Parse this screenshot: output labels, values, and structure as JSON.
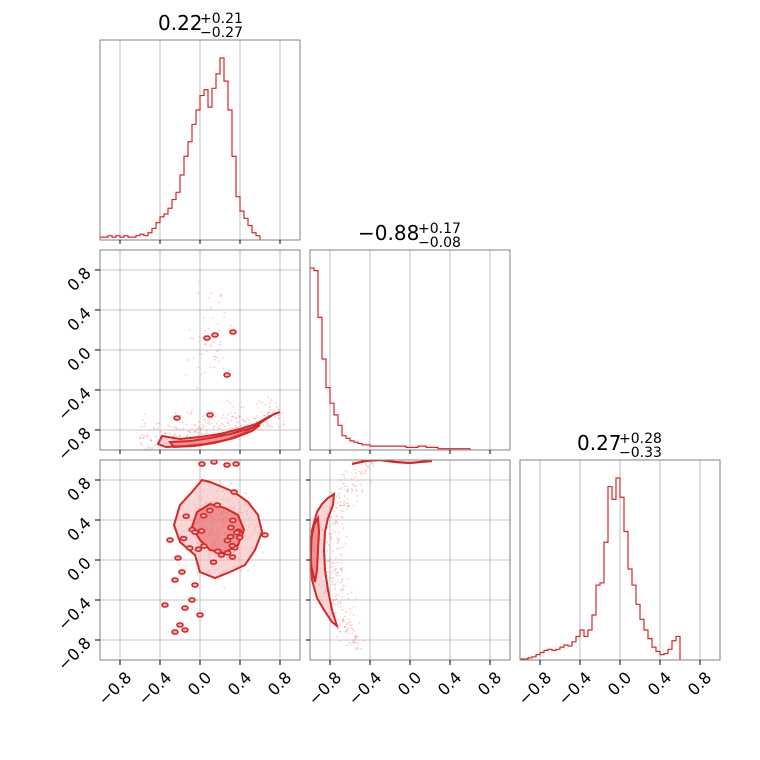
{
  "chart_data": {
    "type": "corner",
    "color": "#d62728",
    "fill_color": "#f4b4b4",
    "grid": true,
    "axis_range": [
      -1,
      1
    ],
    "tick_values": [
      -0.8,
      -0.4,
      0.0,
      0.4,
      0.8
    ],
    "tick_labels": [
      "−0.8",
      "−0.4",
      "0.0",
      "0.4",
      "0.8"
    ],
    "titles": [
      {
        "value": "0.22",
        "upper": "+0.21",
        "lower": "−0.27"
      },
      {
        "value": "−0.88",
        "upper": "+0.17",
        "lower": "−0.08"
      },
      {
        "value": "0.27",
        "upper": "+0.28",
        "lower": "−0.33"
      }
    ],
    "histograms": [
      {
        "edges_start": -1.0,
        "bin_width": 0.04,
        "counts": [
          2,
          2,
          3,
          2,
          3,
          2,
          3,
          2,
          2,
          3,
          4,
          3,
          5,
          8,
          12,
          16,
          18,
          22,
          28,
          33,
          45,
          58,
          68,
          80,
          90,
          100,
          104,
          92,
          105,
          115,
          126,
          110,
          90,
          58,
          30,
          20,
          15,
          10,
          5,
          3
        ]
      },
      {
        "edges_start": -1.0,
        "bin_width": 0.04,
        "counts": [
          140,
          138,
          102,
          70,
          48,
          36,
          27,
          19,
          11,
          9,
          7,
          6,
          5,
          4,
          4,
          3,
          3,
          3,
          3,
          3,
          3,
          3,
          3,
          3,
          2,
          2,
          2,
          3,
          3,
          2,
          2,
          2,
          1,
          1,
          1,
          1,
          1,
          1,
          1,
          1
        ]
      },
      {
        "edges_start": -1.0,
        "bin_width": 0.04,
        "counts": [
          1,
          1,
          2,
          3,
          5,
          7,
          9,
          10,
          9,
          10,
          12,
          14,
          13,
          17,
          22,
          28,
          22,
          28,
          42,
          70,
          72,
          110,
          162,
          150,
          170,
          152,
          120,
          85,
          70,
          52,
          38,
          28,
          20,
          12,
          8,
          5,
          6,
          10,
          18,
          22
        ]
      }
    ],
    "contours": {
      "p1_vs_p2": {
        "outer": [
          [
            -0.38,
            -0.86
          ],
          [
            -0.2,
            -0.89
          ],
          [
            0.0,
            -0.87
          ],
          [
            0.2,
            -0.84
          ],
          [
            0.4,
            -0.79
          ],
          [
            0.56,
            -0.74
          ],
          [
            0.7,
            -0.66
          ],
          [
            0.8,
            -0.62
          ],
          [
            0.74,
            -0.64
          ],
          [
            0.6,
            -0.73
          ],
          [
            0.44,
            -0.83
          ],
          [
            0.26,
            -0.9
          ],
          [
            0.05,
            -0.94
          ],
          [
            -0.15,
            -0.96
          ],
          [
            -0.34,
            -0.97
          ],
          [
            -0.42,
            -0.94
          ]
        ],
        "inner": [
          [
            -0.3,
            -0.92
          ],
          [
            -0.1,
            -0.91
          ],
          [
            0.1,
            -0.88
          ],
          [
            0.3,
            -0.84
          ],
          [
            0.48,
            -0.79
          ],
          [
            0.6,
            -0.75
          ],
          [
            0.52,
            -0.81
          ],
          [
            0.34,
            -0.88
          ],
          [
            0.14,
            -0.93
          ],
          [
            -0.06,
            -0.96
          ],
          [
            -0.26,
            -0.97
          ]
        ],
        "specks": [
          [
            0.07,
            0.12
          ],
          [
            0.15,
            0.15
          ],
          [
            0.33,
            0.18
          ],
          [
            0.27,
            -0.25
          ],
          [
            -0.23,
            -0.68
          ],
          [
            0.1,
            -0.65
          ]
        ]
      },
      "p1_vs_p3": {
        "outer": [
          [
            -0.05,
            0.05
          ],
          [
            -0.2,
            0.18
          ],
          [
            -0.26,
            0.35
          ],
          [
            -0.2,
            0.55
          ],
          [
            -0.08,
            0.68
          ],
          [
            0.02,
            0.8
          ],
          [
            0.1,
            0.78
          ],
          [
            0.2,
            0.74
          ],
          [
            0.34,
            0.68
          ],
          [
            0.48,
            0.58
          ],
          [
            0.58,
            0.45
          ],
          [
            0.62,
            0.28
          ],
          [
            0.55,
            0.1
          ],
          [
            0.45,
            -0.05
          ],
          [
            0.3,
            -0.12
          ],
          [
            0.15,
            -0.18
          ],
          [
            0.0,
            -0.12
          ]
        ],
        "inner": [
          [
            0.0,
            0.2
          ],
          [
            -0.08,
            0.33
          ],
          [
            -0.03,
            0.48
          ],
          [
            0.1,
            0.56
          ],
          [
            0.25,
            0.52
          ],
          [
            0.38,
            0.45
          ],
          [
            0.44,
            0.3
          ],
          [
            0.38,
            0.15
          ],
          [
            0.24,
            0.07
          ],
          [
            0.1,
            0.1
          ]
        ],
        "specks": [
          [
            0.02,
            0.96
          ],
          [
            0.14,
            0.98
          ],
          [
            0.27,
            0.95
          ],
          [
            0.36,
            0.96
          ],
          [
            -0.3,
            0.2
          ],
          [
            -0.22,
            0.02
          ],
          [
            -0.18,
            -0.12
          ],
          [
            -0.25,
            -0.2
          ],
          [
            -0.05,
            -0.25
          ],
          [
            -0.08,
            -0.4
          ],
          [
            0.0,
            -0.55
          ],
          [
            -0.15,
            -0.48
          ],
          [
            -0.35,
            -0.45
          ],
          [
            -0.2,
            -0.65
          ],
          [
            -0.25,
            -0.72
          ],
          [
            -0.15,
            -0.7
          ],
          [
            0.65,
            0.25
          ]
        ]
      },
      "p2_vs_p3": {
        "outer": [
          [
            -0.98,
            -0.2
          ],
          [
            -0.99,
            0.05
          ],
          [
            -0.98,
            0.3
          ],
          [
            -0.93,
            0.48
          ],
          [
            -0.88,
            0.56
          ],
          [
            -0.82,
            0.62
          ],
          [
            -0.76,
            0.66
          ],
          [
            -0.77,
            0.55
          ],
          [
            -0.82,
            0.42
          ],
          [
            -0.85,
            0.28
          ],
          [
            -0.86,
            0.1
          ],
          [
            -0.85,
            -0.1
          ],
          [
            -0.82,
            -0.3
          ],
          [
            -0.78,
            -0.5
          ],
          [
            -0.73,
            -0.66
          ],
          [
            -0.78,
            -0.62
          ],
          [
            -0.86,
            -0.5
          ],
          [
            -0.93,
            -0.38
          ]
        ],
        "inner": [
          [
            -0.99,
            -0.05
          ],
          [
            -0.99,
            0.2
          ],
          [
            -0.96,
            0.35
          ],
          [
            -0.92,
            0.42
          ],
          [
            -0.91,
            0.28
          ],
          [
            -0.92,
            0.1
          ],
          [
            -0.93,
            -0.1
          ],
          [
            -0.95,
            -0.22
          ]
        ],
        "arc": [
          [
            -0.58,
            0.96
          ],
          [
            -0.45,
            0.99
          ],
          [
            -0.3,
            1.0
          ],
          [
            -0.15,
            0.98
          ],
          [
            0.0,
            0.97
          ],
          [
            0.1,
            0.98
          ],
          [
            0.22,
            0.99
          ]
        ]
      }
    }
  }
}
